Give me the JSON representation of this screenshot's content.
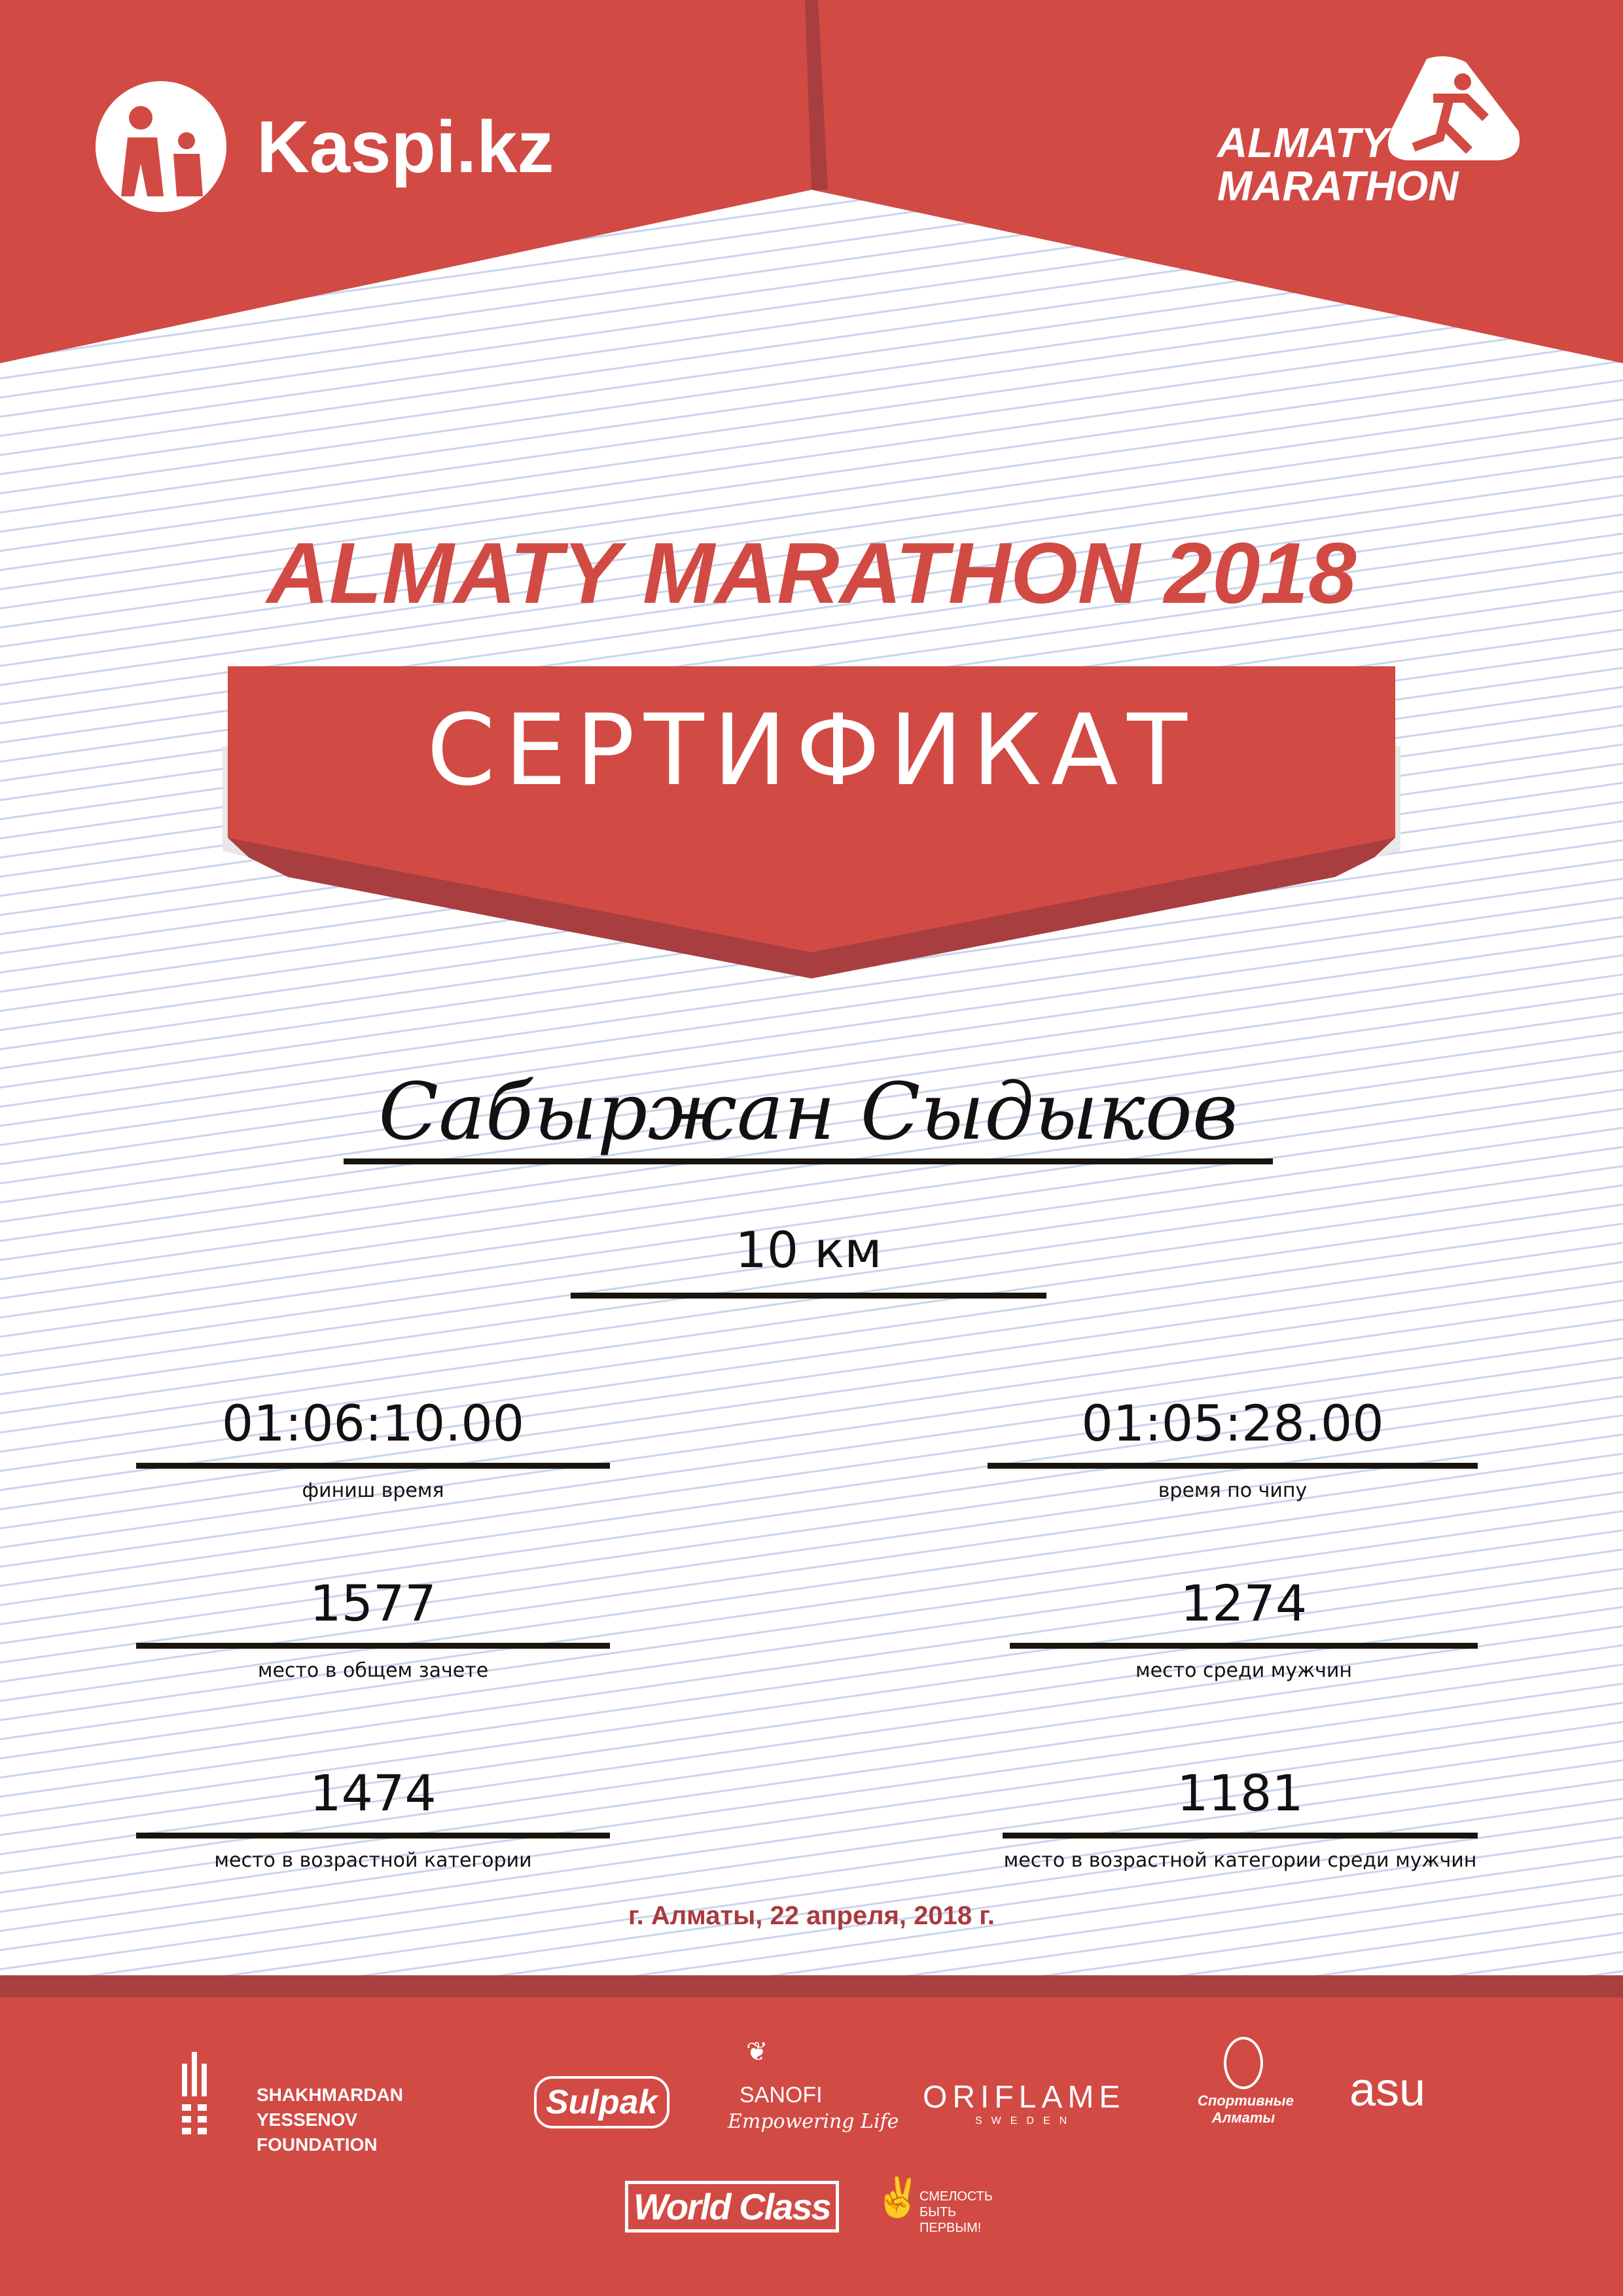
{
  "header": {
    "kaspi_logo": "Kaspi.kz",
    "marathon_logo_line1": "ALMATY",
    "marathon_logo_line2": "MARATHON"
  },
  "title": "ALMATY MARATHON 2018",
  "certificate_label": "СЕРТИФИКАТ",
  "participant_name": "Сабыржан Сыдыков",
  "distance": "10 км",
  "results": [
    {
      "value": "01:06:10.00",
      "label": "финиш время"
    },
    {
      "value": "01:05:28.00",
      "label": "время по чипу"
    },
    {
      "value": "1577",
      "label": "место в общем зачете"
    },
    {
      "value": "1274",
      "label": "место среди мужчин"
    },
    {
      "value": "1474",
      "label": "место в возрастной категории"
    },
    {
      "value": "1181",
      "label": "место в возрастной категории среди мужчин"
    }
  ],
  "date": "г. Алматы, 22 апреля, 2018 г.",
  "sponsors": {
    "yessenov": "SHAKHMARDAN YESSENOV FOUNDATION",
    "sulpak": "Sulpak",
    "sanofi": "SANOFI",
    "sanofi_tag": "Empowering Life",
    "oriflame": "ORIFLAME",
    "oriflame_sub": "SWEDEN",
    "sport_almaty": "Спортивные Алматы",
    "asu": "asu",
    "worldclass": "World Class",
    "fund": "СМЕЛОСТЬ БЫТЬ ПЕРВЫМ!"
  },
  "colors": {
    "primary": "#d24a44",
    "dark": "#a84040",
    "date": "#a83b3f"
  }
}
